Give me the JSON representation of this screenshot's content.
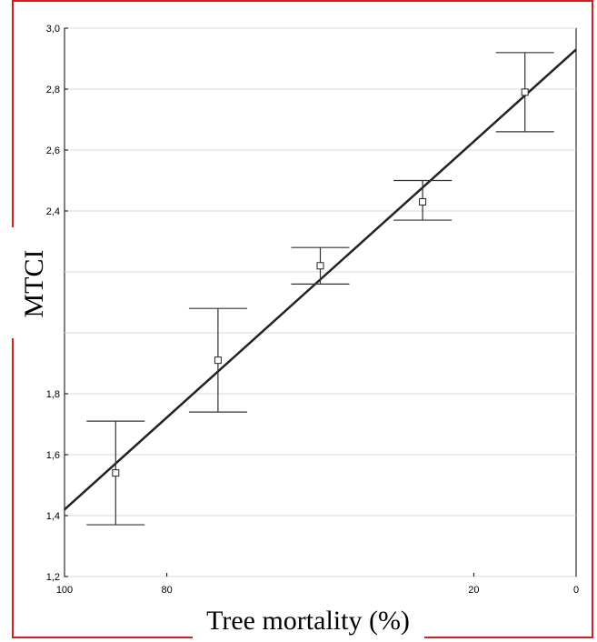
{
  "chart_data": {
    "type": "scatter",
    "title": "",
    "xlabel": "Tree mortality (%)",
    "ylabel": "MTCI",
    "xlim": [
      100,
      0
    ],
    "ylim": [
      1.2,
      3.0
    ],
    "x_ticks": [
      {
        "value": 100,
        "label": "100"
      },
      {
        "value": 80,
        "label": "80"
      },
      {
        "value": 20,
        "label": "20"
      },
      {
        "value": 0,
        "label": "0"
      }
    ],
    "y_ticks": [
      {
        "value": 3.0,
        "label": "3,0"
      },
      {
        "value": 2.8,
        "label": "2,8"
      },
      {
        "value": 2.6,
        "label": "2,6"
      },
      {
        "value": 2.4,
        "label": "2,4"
      },
      {
        "value": 1.8,
        "label": "1,8"
      },
      {
        "value": 1.6,
        "label": "1,6"
      },
      {
        "value": 1.4,
        "label": "1,4"
      },
      {
        "value": 1.2,
        "label": "1,2"
      }
    ],
    "y_gridlines": [
      3.0,
      2.8,
      2.6,
      2.4,
      2.2,
      2.0,
      1.8,
      1.6,
      1.4,
      1.2
    ],
    "grid": true,
    "points": [
      {
        "x": 90,
        "y": 1.54,
        "err_low": 1.37,
        "err_high": 1.71
      },
      {
        "x": 70,
        "y": 1.91,
        "err_low": 1.74,
        "err_high": 2.08
      },
      {
        "x": 50,
        "y": 2.22,
        "err_low": 2.16,
        "err_high": 2.28
      },
      {
        "x": 30,
        "y": 2.43,
        "err_low": 2.37,
        "err_high": 2.5
      },
      {
        "x": 10,
        "y": 2.79,
        "err_low": 2.66,
        "err_high": 2.92
      }
    ],
    "fit_line": {
      "x": [
        100,
        0
      ],
      "y": [
        1.42,
        2.93
      ]
    },
    "colors": {
      "frame": "#d22020",
      "line": "#222222",
      "grid": "#d8d8d8"
    }
  }
}
